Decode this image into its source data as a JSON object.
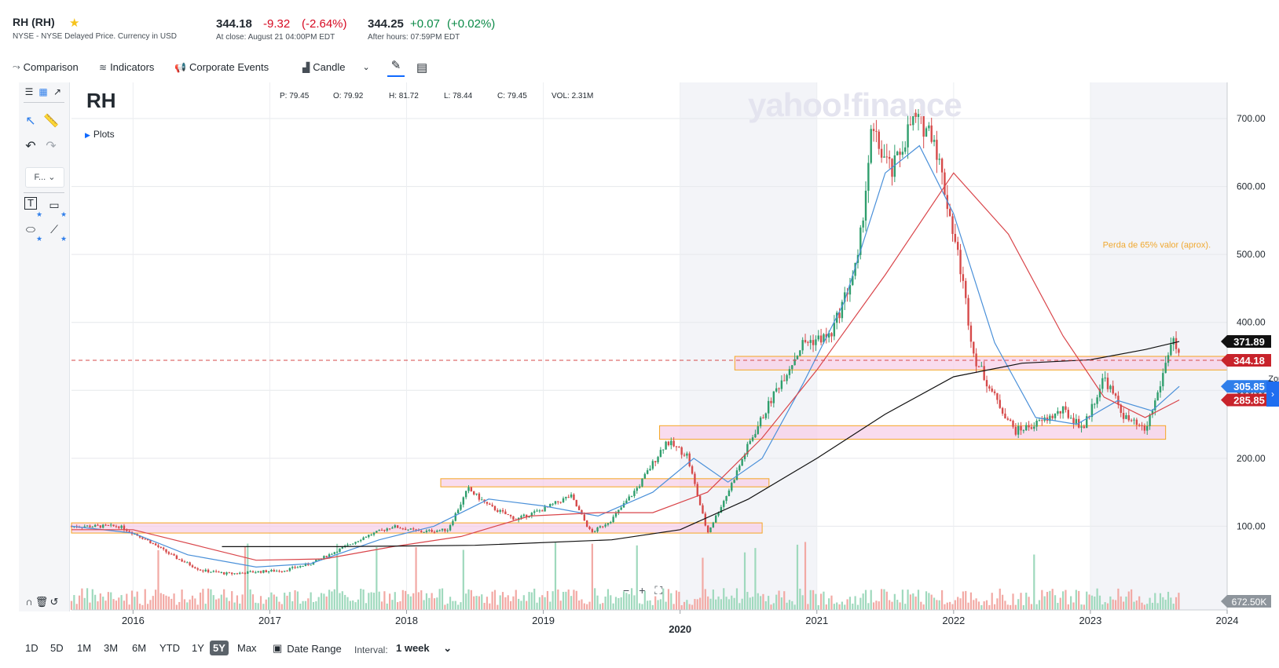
{
  "quote": {
    "ticker": "RH (RH)",
    "exchange": "NYSE - NYSE Delayed Price. Currency in USD",
    "price": "344.18",
    "change": "-9.32",
    "change_pct": "(-2.64%)",
    "close_time": "At close: August 21 04:00PM EDT",
    "ah_price": "344.25",
    "ah_change": "+0.07",
    "ah_change_pct": "(+0.02%)",
    "ah_time": "After hours: 07:59PM EDT"
  },
  "toolbar": {
    "comparison": "Comparison",
    "indicators": "Indicators",
    "corporate_events": "Corporate Events",
    "chart_type": "Candle"
  },
  "sidebar": {
    "font_select": "F..."
  },
  "chart_overlay": {
    "symbol": "RH",
    "plots_label": "Plots",
    "ohlc": {
      "p": "P: 79.45",
      "o": "O: 79.92",
      "h": "H: 81.72",
      "l": "L: 78.44",
      "c": "C: 79.45",
      "vol": "VOL: 2.31M"
    },
    "watermark": "yahoo!finance"
  },
  "colors": {
    "up": "#2f9e6d",
    "down": "#d64a4a",
    "ma_blue": "#4a90d9",
    "ma_red": "#d9454a",
    "ma_black": "#111111",
    "zone_fill": "#f7d0e8",
    "zone_border": "#f5a623",
    "accent": "#0f69ff"
  },
  "chart_data": {
    "type": "candlestick",
    "x_ticks": [
      "2016",
      "2017",
      "2018",
      "2019",
      "2020",
      "2021",
      "2022",
      "2023",
      "2024"
    ],
    "x_range": [
      2015.55,
      2024.0
    ],
    "y_ticks": [
      "700.00",
      "600.00",
      "500.00",
      "400.00",
      "300.00",
      "200.00",
      "100.00"
    ],
    "y_range": [
      0,
      750
    ],
    "volume_label": "672.50K",
    "price_path": [
      [
        2015.55,
        100
      ],
      [
        2015.9,
        100
      ],
      [
        2016.1,
        80
      ],
      [
        2016.3,
        55
      ],
      [
        2016.5,
        35
      ],
      [
        2016.7,
        30
      ],
      [
        2016.9,
        33
      ],
      [
        2017.1,
        35
      ],
      [
        2017.3,
        45
      ],
      [
        2017.5,
        65
      ],
      [
        2017.7,
        85
      ],
      [
        2017.9,
        100
      ],
      [
        2018.1,
        92
      ],
      [
        2018.3,
        95
      ],
      [
        2018.45,
        155
      ],
      [
        2018.6,
        130
      ],
      [
        2018.8,
        110
      ],
      [
        2019.0,
        125
      ],
      [
        2019.2,
        145
      ],
      [
        2019.35,
        90
      ],
      [
        2019.5,
        110
      ],
      [
        2019.7,
        160
      ],
      [
        2019.9,
        225
      ],
      [
        2020.05,
        205
      ],
      [
        2020.2,
        90
      ],
      [
        2020.35,
        150
      ],
      [
        2020.5,
        220
      ],
      [
        2020.7,
        300
      ],
      [
        2020.9,
        370
      ],
      [
        2021.1,
        380
      ],
      [
        2021.3,
        490
      ],
      [
        2021.4,
        680
      ],
      [
        2021.55,
        620
      ],
      [
        2021.7,
        700
      ],
      [
        2021.85,
        680
      ],
      [
        2021.95,
        580
      ],
      [
        2022.05,
        480
      ],
      [
        2022.15,
        350
      ],
      [
        2022.3,
        290
      ],
      [
        2022.45,
        240
      ],
      [
        2022.6,
        250
      ],
      [
        2022.8,
        270
      ],
      [
        2022.95,
        245
      ],
      [
        2023.1,
        320
      ],
      [
        2023.25,
        260
      ],
      [
        2023.4,
        240
      ],
      [
        2023.5,
        300
      ],
      [
        2023.6,
        380
      ],
      [
        2023.65,
        344.18
      ]
    ],
    "series": [
      {
        "name": "",
        "color": "#4a90d9",
        "values": [
          [
            2015.55,
            100
          ],
          [
            2016.0,
            90
          ],
          [
            2016.4,
            58
          ],
          [
            2016.9,
            40
          ],
          [
            2017.3,
            45
          ],
          [
            2017.8,
            80
          ],
          [
            2018.2,
            100
          ],
          [
            2018.6,
            140
          ],
          [
            2019.0,
            130
          ],
          [
            2019.4,
            115
          ],
          [
            2019.8,
            150
          ],
          [
            2020.1,
            200
          ],
          [
            2020.35,
            165
          ],
          [
            2020.6,
            200
          ],
          [
            2020.9,
            310
          ],
          [
            2021.2,
            430
          ],
          [
            2021.5,
            620
          ],
          [
            2021.75,
            660
          ],
          [
            2022.0,
            560
          ],
          [
            2022.3,
            370
          ],
          [
            2022.6,
            260
          ],
          [
            2022.9,
            250
          ],
          [
            2023.2,
            285
          ],
          [
            2023.45,
            270
          ],
          [
            2023.65,
            305.85
          ]
        ]
      },
      {
        "name": "",
        "color": "#d9454a",
        "values": [
          [
            2015.55,
            95
          ],
          [
            2016.0,
            95
          ],
          [
            2016.5,
            70
          ],
          [
            2016.9,
            50
          ],
          [
            2017.4,
            52
          ],
          [
            2017.9,
            70
          ],
          [
            2018.4,
            85
          ],
          [
            2018.9,
            115
          ],
          [
            2019.4,
            120
          ],
          [
            2019.8,
            120
          ],
          [
            2020.2,
            150
          ],
          [
            2020.6,
            230
          ],
          [
            2021.0,
            330
          ],
          [
            2021.5,
            470
          ],
          [
            2022.0,
            620
          ],
          [
            2022.4,
            530
          ],
          [
            2022.8,
            380
          ],
          [
            2023.1,
            290
          ],
          [
            2023.4,
            260
          ],
          [
            2023.65,
            285.85
          ]
        ]
      },
      {
        "name": "",
        "color": "#111111",
        "values": [
          [
            2016.65,
            70
          ],
          [
            2017.5,
            70
          ],
          [
            2018.5,
            72
          ],
          [
            2019.5,
            80
          ],
          [
            2020.0,
            95
          ],
          [
            2020.5,
            140
          ],
          [
            2021.0,
            200
          ],
          [
            2021.5,
            265
          ],
          [
            2022.0,
            320
          ],
          [
            2022.5,
            340
          ],
          [
            2023.0,
            345
          ],
          [
            2023.4,
            360
          ],
          [
            2023.65,
            371.89
          ]
        ]
      }
    ],
    "zones": [
      {
        "x0": 2015.55,
        "x1": 2020.6,
        "y0": 90,
        "y1": 105
      },
      {
        "x0": 2018.25,
        "x1": 2020.65,
        "y0": 158,
        "y1": 170
      },
      {
        "x0": 2019.85,
        "x1": 2023.55,
        "y0": 228,
        "y1": 248
      },
      {
        "x0": 2020.4,
        "x1": 2024.0,
        "y0": 330,
        "y1": 350
      }
    ],
    "price_line": 344.18,
    "price_tags": [
      {
        "value": 371.89,
        "label": "371.89",
        "color": "#111111"
      },
      {
        "value": 344.18,
        "label": "344.18",
        "color": "#c8232b"
      },
      {
        "value": 305.85,
        "label": "305.85",
        "color": "#2f7eea"
      },
      {
        "value": 285.85,
        "label": "285.85",
        "color": "#c8232b"
      }
    ],
    "annotations": [
      {
        "text": "Perda de 65% valor (aprox).",
        "x": 2023.09,
        "y": 510,
        "color": "#f0a830"
      },
      {
        "text": "Zona de reforço.",
        "x": 2024.3,
        "y": 313,
        "color": "#232a31"
      }
    ]
  },
  "bottom": {
    "ranges": [
      "1D",
      "5D",
      "1M",
      "3M",
      "6M",
      "YTD",
      "1Y",
      "5Y",
      "Max"
    ],
    "active_range": "5Y",
    "date_range": "Date Range",
    "interval_label": "Interval:",
    "interval_value": "1 week"
  }
}
